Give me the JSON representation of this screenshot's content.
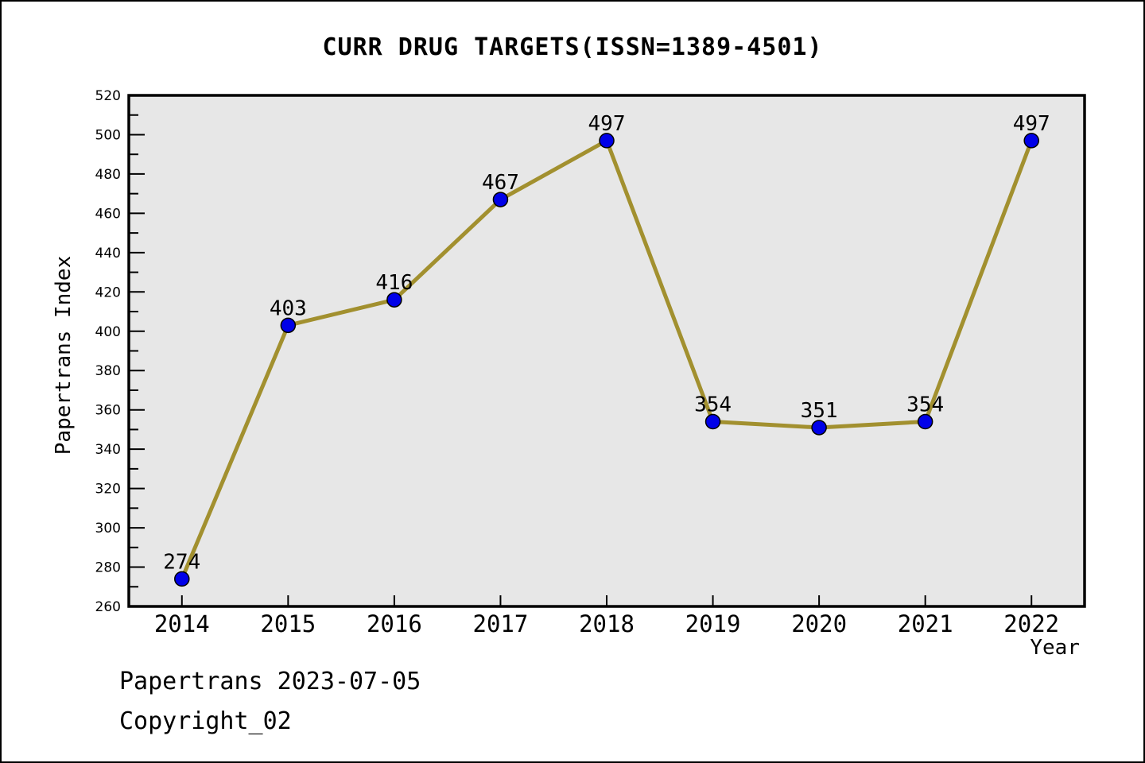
{
  "title": "CURR DRUG TARGETS(ISSN=1389-4501)",
  "footer": {
    "line1": "Papertrans 2023-07-05",
    "line2": "Copyright_02"
  },
  "chart_data": {
    "type": "line",
    "title": "CURR DRUG TARGETS(ISSN=1389-4501)",
    "x": [
      2014,
      2015,
      2016,
      2017,
      2018,
      2019,
      2020,
      2021,
      2022
    ],
    "values": [
      274,
      403,
      416,
      467,
      497,
      354,
      351,
      354,
      497
    ],
    "xlabel": "Year",
    "ylabel": "Papertrans Index",
    "xlim": [
      2013.5,
      2022.5
    ],
    "ylim": [
      260,
      520
    ],
    "yticks": [
      260,
      280,
      300,
      320,
      340,
      360,
      380,
      400,
      420,
      440,
      460,
      480,
      500,
      520
    ],
    "ytick_minor_step": 10,
    "grid": false,
    "legend": "none",
    "colors": {
      "line": "#a2902f",
      "marker_fill": "#0000e8",
      "marker_edge": "#000000",
      "plot_background": "#e7e7e7",
      "frame": "#000000",
      "text": "#000000"
    }
  }
}
